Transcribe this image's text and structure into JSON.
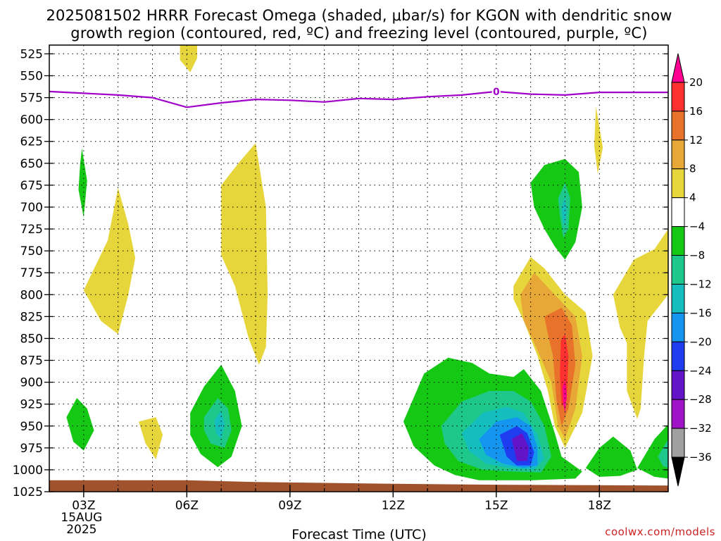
{
  "chart_data": {
    "type": "heatmap",
    "title_line1": "2025081502 HRRR Forecast Omega (shaded, μbar/s) for KGON with dendritic snow",
    "title_line2": "growth region (contoured, red, ºC) and freezing level (contoured, purple, ºC)",
    "xlabel": "Forecast Time (UTC)",
    "credit": "coolwx.com/models",
    "x_range_hours": [
      2.0,
      20.0
    ],
    "x_ticks": [
      {
        "hour": 3,
        "label": "03Z",
        "sub1": "15AUG",
        "sub2": "2025"
      },
      {
        "hour": 6,
        "label": "06Z"
      },
      {
        "hour": 9,
        "label": "09Z"
      },
      {
        "hour": 12,
        "label": "12Z"
      },
      {
        "hour": 15,
        "label": "15Z"
      },
      {
        "hour": 18,
        "label": "18Z"
      }
    ],
    "y_ticks": [
      525,
      550,
      575,
      600,
      625,
      650,
      675,
      700,
      725,
      750,
      775,
      800,
      825,
      850,
      875,
      900,
      925,
      950,
      975,
      1000,
      1025
    ],
    "y_range_hpa": [
      515,
      1025
    ],
    "colorbar": {
      "labels": [
        "20",
        "16",
        "12",
        "8",
        "4",
        "−4",
        "−8",
        "−12",
        "−16",
        "−20",
        "−24",
        "−28",
        "−32",
        "−36"
      ],
      "colors": [
        "#ff0090",
        "#ff3030",
        "#e8722a",
        "#e8a838",
        "#e6d63c",
        "#ffffff",
        "#14c814",
        "#1ec88c",
        "#14bebe",
        "#1496f0",
        "#1e3cf0",
        "#6414c8",
        "#a014c8",
        "#a0a0a0",
        "#000000"
      ]
    },
    "freezing_level": {
      "contour_label": "0",
      "color": "#a000c8",
      "points": [
        [
          2.0,
          568
        ],
        [
          3.0,
          570
        ],
        [
          4.0,
          572
        ],
        [
          5.0,
          575
        ],
        [
          6.0,
          586
        ],
        [
          7.0,
          581
        ],
        [
          8.0,
          577
        ],
        [
          9.0,
          578
        ],
        [
          10.0,
          580
        ],
        [
          11.0,
          576
        ],
        [
          12.0,
          577
        ],
        [
          13.0,
          574
        ],
        [
          14.0,
          572
        ],
        [
          15.0,
          568
        ],
        [
          16.0,
          571
        ],
        [
          17.0,
          572
        ],
        [
          18.0,
          569
        ],
        [
          19.0,
          569
        ],
        [
          20.0,
          569
        ]
      ]
    },
    "ground": {
      "color": "#a0522d",
      "top_points": [
        [
          2.0,
          1012
        ],
        [
          6.0,
          1012
        ],
        [
          8.0,
          1014
        ],
        [
          12.0,
          1016
        ],
        [
          15.0,
          1017
        ],
        [
          20.0,
          1018
        ]
      ]
    },
    "omega_regions": [
      {
        "color": "#e6d63c",
        "points": [
          [
            5.8,
            515
          ],
          [
            6.3,
            515
          ],
          [
            6.3,
            530
          ],
          [
            6.1,
            546
          ],
          [
            5.8,
            532
          ]
        ]
      },
      {
        "color": "#14c814",
        "points": [
          [
            2.95,
            633
          ],
          [
            3.1,
            670
          ],
          [
            3.0,
            712
          ],
          [
            2.85,
            680
          ],
          [
            2.9,
            650
          ]
        ]
      },
      {
        "color": "#e6d63c",
        "points": [
          [
            3.0,
            795
          ],
          [
            3.7,
            738
          ],
          [
            4.0,
            678
          ],
          [
            4.3,
            720
          ],
          [
            4.5,
            758
          ],
          [
            4.3,
            800
          ],
          [
            4.0,
            845
          ],
          [
            3.5,
            830
          ]
        ]
      },
      {
        "color": "#e6d63c",
        "points": [
          [
            7.0,
            675
          ],
          [
            7.5,
            650
          ],
          [
            8.0,
            627
          ],
          [
            8.3,
            700
          ],
          [
            8.35,
            800
          ],
          [
            8.3,
            860
          ],
          [
            8.1,
            880
          ],
          [
            7.8,
            850
          ],
          [
            7.4,
            790
          ],
          [
            7.0,
            755
          ]
        ]
      },
      {
        "color": "#14c814",
        "points": [
          [
            2.5,
            940
          ],
          [
            2.8,
            918
          ],
          [
            3.1,
            930
          ],
          [
            3.3,
            955
          ],
          [
            3.0,
            978
          ],
          [
            2.7,
            968
          ]
        ]
      },
      {
        "color": "#e6d63c",
        "points": [
          [
            4.6,
            945
          ],
          [
            5.1,
            940
          ],
          [
            5.3,
            960
          ],
          [
            5.1,
            988
          ],
          [
            4.8,
            970
          ]
        ]
      },
      {
        "color": "#14c814",
        "points": [
          [
            6.1,
            935
          ],
          [
            6.5,
            905
          ],
          [
            7.0,
            880
          ],
          [
            7.4,
            910
          ],
          [
            7.6,
            950
          ],
          [
            7.3,
            985
          ],
          [
            6.9,
            997
          ],
          [
            6.4,
            982
          ],
          [
            6.1,
            960
          ]
        ]
      },
      {
        "color": "#1ec88c",
        "points": [
          [
            6.5,
            940
          ],
          [
            6.9,
            918
          ],
          [
            7.2,
            930
          ],
          [
            7.3,
            955
          ],
          [
            7.1,
            975
          ],
          [
            6.7,
            970
          ],
          [
            6.5,
            955
          ]
        ]
      },
      {
        "color": "#14bebe",
        "points": [
          [
            6.8,
            944
          ],
          [
            7.0,
            932
          ],
          [
            7.1,
            948
          ],
          [
            7.0,
            965
          ],
          [
            6.85,
            958
          ]
        ]
      },
      {
        "color": "#e6d63c",
        "points": [
          [
            15.5,
            790
          ],
          [
            16.0,
            757
          ],
          [
            16.4,
            770
          ],
          [
            17.0,
            800
          ],
          [
            17.6,
            820
          ],
          [
            17.8,
            870
          ],
          [
            17.5,
            935
          ],
          [
            17.0,
            975
          ],
          [
            16.7,
            950
          ],
          [
            16.5,
            910
          ],
          [
            16.2,
            870
          ],
          [
            15.8,
            830
          ],
          [
            15.5,
            805
          ]
        ]
      },
      {
        "color": "#e8a838",
        "points": [
          [
            15.7,
            800
          ],
          [
            16.1,
            775
          ],
          [
            16.7,
            800
          ],
          [
            17.3,
            825
          ],
          [
            17.5,
            870
          ],
          [
            17.3,
            930
          ],
          [
            17.0,
            965
          ],
          [
            16.8,
            950
          ],
          [
            16.6,
            900
          ],
          [
            16.1,
            855
          ],
          [
            15.8,
            830
          ]
        ]
      },
      {
        "color": "#e8722a",
        "points": [
          [
            16.4,
            825
          ],
          [
            16.9,
            815
          ],
          [
            17.2,
            835
          ],
          [
            17.3,
            880
          ],
          [
            17.1,
            930
          ],
          [
            16.9,
            950
          ],
          [
            16.75,
            920
          ],
          [
            16.65,
            870
          ],
          [
            16.5,
            845
          ]
        ]
      },
      {
        "color": "#ff3030",
        "points": [
          [
            16.88,
            852
          ],
          [
            17.0,
            845
          ],
          [
            17.1,
            870
          ],
          [
            17.05,
            920
          ],
          [
            16.9,
            928
          ],
          [
            16.85,
            890
          ]
        ]
      },
      {
        "color": "#ff0090",
        "points": [
          [
            16.93,
            905
          ],
          [
            17.0,
            898
          ],
          [
            17.05,
            915
          ],
          [
            17.0,
            935
          ],
          [
            16.95,
            925
          ]
        ]
      },
      {
        "color": "#14c814",
        "points": [
          [
            16.0,
            672
          ],
          [
            16.4,
            652
          ],
          [
            17.0,
            645
          ],
          [
            17.4,
            660
          ],
          [
            17.5,
            700
          ],
          [
            17.3,
            740
          ],
          [
            17.0,
            760
          ],
          [
            16.7,
            745
          ],
          [
            16.4,
            725
          ],
          [
            16.1,
            700
          ]
        ]
      },
      {
        "color": "#1ec88c",
        "points": [
          [
            16.8,
            690
          ],
          [
            17.0,
            672
          ],
          [
            17.15,
            690
          ],
          [
            17.1,
            725
          ],
          [
            16.95,
            735
          ],
          [
            16.85,
            710
          ]
        ]
      },
      {
        "color": "#14bebe",
        "points": [
          [
            16.9,
            700
          ],
          [
            17.0,
            688
          ],
          [
            17.05,
            705
          ],
          [
            17.0,
            722
          ],
          [
            16.93,
            715
          ]
        ]
      },
      {
        "color": "#e6d63c",
        "points": [
          [
            17.9,
            585
          ],
          [
            18.1,
            632
          ],
          [
            17.95,
            662
          ],
          [
            17.85,
            630
          ]
        ]
      },
      {
        "color": "#e6d63c",
        "points": [
          [
            18.4,
            800
          ],
          [
            19.0,
            760
          ],
          [
            19.6,
            748
          ],
          [
            20.0,
            725
          ],
          [
            20.0,
            800
          ],
          [
            19.4,
            830
          ],
          [
            19.3,
            870
          ],
          [
            19.2,
            930
          ],
          [
            19.1,
            942
          ],
          [
            18.8,
            910
          ],
          [
            18.8,
            855
          ],
          [
            18.6,
            838
          ]
        ]
      },
      {
        "color": "#14c814",
        "points": [
          [
            12.3,
            945
          ],
          [
            12.9,
            890
          ],
          [
            13.6,
            872
          ],
          [
            14.3,
            878
          ],
          [
            14.8,
            890
          ],
          [
            15.5,
            894
          ],
          [
            15.8,
            885
          ],
          [
            16.3,
            910
          ],
          [
            16.7,
            958
          ],
          [
            16.9,
            985
          ],
          [
            17.5,
            1002
          ],
          [
            17.3,
            1010
          ],
          [
            16.0,
            1012
          ],
          [
            15.0,
            1012
          ],
          [
            14.5,
            1012
          ],
          [
            13.8,
            1006
          ],
          [
            13.2,
            995
          ],
          [
            12.6,
            973
          ]
        ]
      },
      {
        "color": "#1ec88c",
        "points": [
          [
            13.4,
            950
          ],
          [
            14.0,
            922
          ],
          [
            14.8,
            910
          ],
          [
            15.5,
            910
          ],
          [
            16.0,
            922
          ],
          [
            16.4,
            950
          ],
          [
            16.6,
            985
          ],
          [
            16.3,
            1003
          ],
          [
            15.4,
            1002
          ],
          [
            14.6,
            1000
          ],
          [
            13.9,
            990
          ],
          [
            13.5,
            970
          ]
        ]
      },
      {
        "color": "#14bebe",
        "points": [
          [
            14.0,
            958
          ],
          [
            14.6,
            935
          ],
          [
            15.3,
            928
          ],
          [
            15.8,
            935
          ],
          [
            16.2,
            960
          ],
          [
            16.4,
            988
          ],
          [
            16.1,
            1000
          ],
          [
            15.4,
            998
          ],
          [
            14.7,
            993
          ],
          [
            14.2,
            978
          ]
        ]
      },
      {
        "color": "#1496f0",
        "points": [
          [
            14.5,
            965
          ],
          [
            15.0,
            945
          ],
          [
            15.6,
            940
          ],
          [
            16.0,
            950
          ],
          [
            16.2,
            975
          ],
          [
            16.2,
            995
          ],
          [
            15.8,
            998
          ],
          [
            15.2,
            993
          ],
          [
            14.7,
            983
          ]
        ]
      },
      {
        "color": "#1e3cf0",
        "points": [
          [
            15.1,
            960
          ],
          [
            15.6,
            950
          ],
          [
            15.9,
            958
          ],
          [
            16.1,
            980
          ],
          [
            16.0,
            995
          ],
          [
            15.6,
            995
          ],
          [
            15.3,
            985
          ]
        ]
      },
      {
        "color": "#6414c8",
        "points": [
          [
            15.45,
            965
          ],
          [
            15.75,
            958
          ],
          [
            15.95,
            975
          ],
          [
            15.9,
            990
          ],
          [
            15.6,
            990
          ]
        ]
      },
      {
        "color": "#14c814",
        "points": [
          [
            17.6,
            998
          ],
          [
            18.0,
            975
          ],
          [
            18.4,
            962
          ],
          [
            18.9,
            978
          ],
          [
            19.1,
            1000
          ],
          [
            18.6,
            1007
          ],
          [
            18.0,
            1008
          ]
        ]
      },
      {
        "color": "#14c814",
        "points": [
          [
            19.1,
            998
          ],
          [
            19.6,
            965
          ],
          [
            20.0,
            948
          ],
          [
            20.0,
            1010
          ],
          [
            19.6,
            1008
          ]
        ]
      },
      {
        "color": "#1ec88c",
        "points": [
          [
            19.7,
            985
          ],
          [
            20.0,
            965
          ],
          [
            20.0,
            998
          ],
          [
            19.85,
            996
          ]
        ]
      }
    ]
  }
}
